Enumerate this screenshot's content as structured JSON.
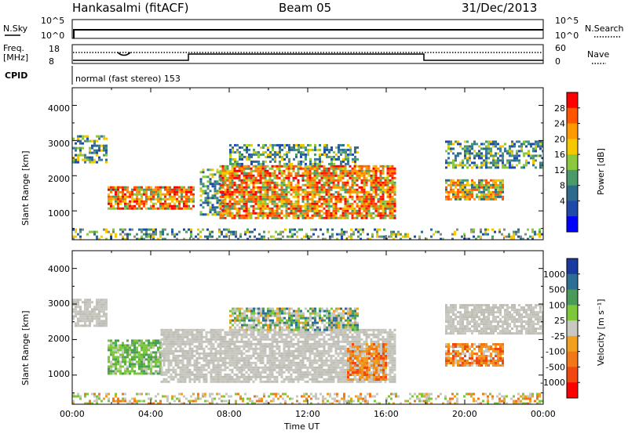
{
  "header": {
    "radar": "Hankasalmi (fitACF)",
    "beam": "Beam 05",
    "date": "31/Dec/2013"
  },
  "status_panels": {
    "nsky_label": "N.Sky",
    "nsky_ticks": [
      "10^5",
      "10^0"
    ],
    "nsearch_label": "N.Search",
    "nsearch_ticks": [
      "10^5",
      "10^0"
    ],
    "freq_label_1": "Freq.",
    "freq_label_2": "[MHz]",
    "freq_ticks": [
      "18",
      "8"
    ],
    "nave_label": "Nave",
    "nave_ticks": [
      "60",
      "0"
    ],
    "cpid_label": "CPID",
    "mode_text": "normal (fast stereo) 153"
  },
  "chart_data": [
    {
      "type": "heatmap",
      "name": "power-panel",
      "ylabel": "Slant Range [km]",
      "yticks": [
        "4000",
        "3000",
        "2000",
        "1000"
      ],
      "xlim": [
        0,
        24
      ],
      "ylim": [
        180,
        4500
      ],
      "colorbar": {
        "label": "Power [dB]",
        "ticks": [
          "28",
          "24",
          "20",
          "16",
          "12",
          "8",
          "4"
        ],
        "colors": [
          "#ff0000",
          "#ff5500",
          "#ff9900",
          "#f5c800",
          "#8cc83c",
          "#4a9a6a",
          "#2e6a8c",
          "#1e4aaa",
          "#0000ff"
        ]
      },
      "echo_regions": [
        {
          "t0": 0.0,
          "t1": 1.7,
          "r0": 2400,
          "r1": 3150,
          "level": "weak"
        },
        {
          "t0": 1.8,
          "t1": 6.2,
          "r0": 1050,
          "r1": 1700,
          "level": "strong"
        },
        {
          "t0": 6.5,
          "t1": 7.8,
          "r0": 900,
          "r1": 2200,
          "level": "weak"
        },
        {
          "t0": 7.5,
          "t1": 16.5,
          "r0": 800,
          "r1": 2300,
          "level": "strong"
        },
        {
          "t0": 8.0,
          "t1": 14.5,
          "r0": 2300,
          "r1": 2900,
          "level": "weak"
        },
        {
          "t0": 19.0,
          "t1": 24.0,
          "r0": 2200,
          "r1": 3000,
          "level": "weak"
        },
        {
          "t0": 19.0,
          "t1": 22.0,
          "r0": 1300,
          "r1": 1900,
          "level": "medium"
        },
        {
          "t0": 0.0,
          "t1": 24.0,
          "r0": 180,
          "r1": 500,
          "level": "noise"
        }
      ]
    },
    {
      "type": "heatmap",
      "name": "velocity-panel",
      "ylabel": "Slant Range [km]",
      "xlabel": "Time UT",
      "yticks": [
        "4000",
        "3000",
        "2000",
        "1000"
      ],
      "xticks": [
        "00:00",
        "04:00",
        "08:00",
        "12:00",
        "16:00",
        "20:00",
        "00:00"
      ],
      "xlim": [
        0,
        24
      ],
      "ylim": [
        180,
        4500
      ],
      "colorbar": {
        "label": "Velocity [m s⁻¹]",
        "ticks": [
          "1000",
          "500",
          "100",
          "25",
          "-25",
          "-100",
          "-500",
          "-1000"
        ],
        "colors": [
          "#1a3aa0",
          "#2e6e96",
          "#4a9a5a",
          "#7cc83a",
          "#c8c8c0",
          "#f0a020",
          "#f07818",
          "#f04810",
          "#ff0000"
        ]
      },
      "echo_regions": [
        {
          "t0": 0.0,
          "t1": 1.7,
          "r0": 2400,
          "r1": 3150,
          "level": "ground"
        },
        {
          "t0": 1.8,
          "t1": 4.5,
          "r0": 1050,
          "r1": 2000,
          "level": "toward"
        },
        {
          "t0": 4.5,
          "t1": 16.5,
          "r0": 800,
          "r1": 2300,
          "level": "ground"
        },
        {
          "t0": 14.0,
          "t1": 16.0,
          "r0": 900,
          "r1": 1900,
          "level": "away"
        },
        {
          "t0": 8.0,
          "t1": 14.5,
          "r0": 2300,
          "r1": 2900,
          "level": "mixed"
        },
        {
          "t0": 19.0,
          "t1": 24.0,
          "r0": 2200,
          "r1": 3000,
          "level": "ground"
        },
        {
          "t0": 19.0,
          "t1": 22.0,
          "r0": 1300,
          "r1": 1900,
          "level": "away"
        },
        {
          "t0": 0.0,
          "t1": 24.0,
          "r0": 180,
          "r1": 500,
          "level": "noise"
        }
      ]
    }
  ]
}
